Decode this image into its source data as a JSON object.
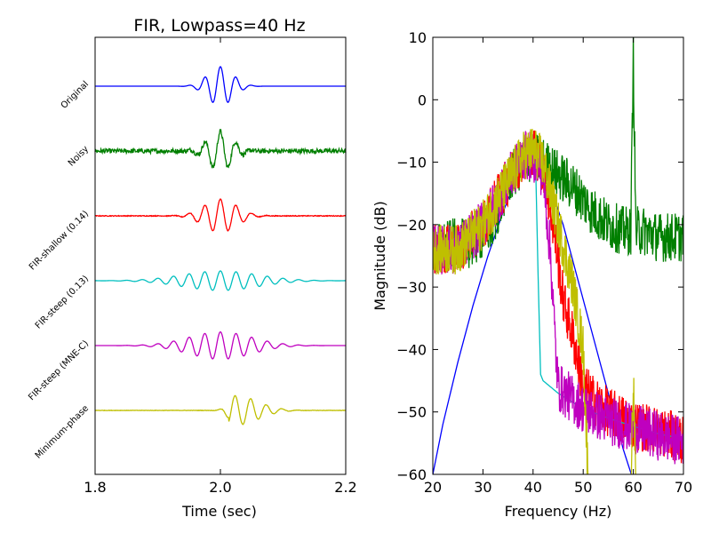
{
  "chart_data": [
    {
      "type": "line",
      "title": "FIR, Lowpass=40 Hz",
      "xlabel": "Time (sec)",
      "ylabel": "",
      "xlim": [
        1.8,
        2.2
      ],
      "xticks": [
        "1.8",
        "2.0",
        "2.2"
      ],
      "grid": false,
      "traces": [
        {
          "label": "Original",
          "color": "#0000ff",
          "peak_time": 2.0,
          "freq_hz": 40,
          "width_sec": 0.02,
          "noise": 0.0,
          "amplitude": 1.0,
          "phase": "zero"
        },
        {
          "label": "Noisy",
          "color": "#007f00",
          "peak_time": 2.0,
          "freq_hz": 40,
          "width_sec": 0.02,
          "noise": 0.12,
          "amplitude": 1.0,
          "phase": "zero"
        },
        {
          "label": "FIR-shallow (0.14)",
          "color": "#ff0000",
          "peak_time": 2.0,
          "freq_hz": 40,
          "width_sec": 0.026,
          "noise": 0.02,
          "amplitude": 0.85,
          "phase": "zero"
        },
        {
          "label": "FIR-steep (0.13)",
          "color": "#00bfbf",
          "peak_time": 2.0,
          "freq_hz": 40,
          "width_sec": 0.06,
          "noise": 0.0,
          "amplitude": 0.5,
          "phase": "zero"
        },
        {
          "label": "FIR-steep (MNE-C)",
          "color": "#bf00bf",
          "peak_time": 2.0,
          "freq_hz": 40,
          "width_sec": 0.05,
          "noise": 0.0,
          "amplitude": 0.7,
          "phase": "zero"
        },
        {
          "label": "Minimum-phase",
          "color": "#bfbf00",
          "peak_time": 2.025,
          "freq_hz": 40,
          "width_sec": 0.035,
          "noise": 0.01,
          "amplitude": 0.75,
          "phase": "minimum"
        }
      ]
    },
    {
      "type": "line",
      "title": "",
      "xlabel": "Frequency (Hz)",
      "ylabel": "Magnitude (dB)",
      "xlim": [
        20,
        70
      ],
      "ylim": [
        -60,
        10
      ],
      "xticks": [
        20,
        30,
        40,
        50,
        60,
        70
      ],
      "yticks": [
        10,
        0,
        -10,
        -20,
        -30,
        -40,
        -50,
        -60
      ],
      "grid": false,
      "series": [
        {
          "color": "#0000ff",
          "x": [
            20,
            22,
            25,
            28,
            31,
            34,
            37,
            40,
            43,
            46,
            49,
            52,
            55,
            58,
            60
          ],
          "y": [
            -60,
            -52,
            -42,
            -33,
            -25,
            -18,
            -12,
            -10,
            -13,
            -20,
            -29,
            -38,
            -47,
            -56,
            -61
          ]
        },
        {
          "color": "#007f00",
          "noisy": true,
          "x": [
            20,
            24,
            28,
            32,
            35,
            38,
            40,
            42,
            45,
            48,
            50,
            52,
            55,
            58,
            59.5,
            60,
            60.5,
            62,
            65,
            68,
            70
          ],
          "y": [
            -24,
            -23,
            -23,
            -20,
            -13,
            -10,
            -9,
            -10,
            -12,
            -14,
            -16,
            -18,
            -20,
            -21,
            -21,
            7.5,
            -21,
            -21,
            -22,
            -22,
            -22
          ]
        },
        {
          "color": "#ff0000",
          "noisy": true,
          "x": [
            20,
            25,
            30,
            35,
            38,
            40,
            42,
            44,
            46,
            48,
            50,
            52,
            55,
            60,
            65,
            70
          ],
          "y": [
            -24,
            -24,
            -20,
            -13,
            -9,
            -8,
            -11,
            -20,
            -32,
            -38,
            -46,
            -48,
            -50,
            -52,
            -53,
            -54.5
          ]
        },
        {
          "color": "#00bfbf",
          "x": [
            20,
            30,
            35,
            38,
            39.5,
            40.5,
            41,
            41.5,
            42,
            45,
            50,
            55,
            60,
            65,
            70
          ],
          "y": [
            -24,
            -20,
            -14,
            -10,
            -9,
            -10,
            -28,
            -44,
            -45,
            -47,
            -49.5,
            -51,
            -52.3,
            -53.5,
            -54.3
          ]
        },
        {
          "color": "#bf00bf",
          "noisy": true,
          "x": [
            20,
            25,
            30,
            35,
            38,
            40,
            42,
            43.5,
            44.5,
            45,
            50,
            55,
            60,
            65,
            70
          ],
          "y": [
            -24,
            -24,
            -20,
            -13,
            -9,
            -9,
            -12,
            -25,
            -40,
            -46,
            -49.5,
            -51.3,
            -52.7,
            -53.8,
            -54.7
          ]
        },
        {
          "color": "#bfbf00",
          "noisy": true,
          "x": [
            20,
            25,
            30,
            35,
            38,
            40,
            42,
            45,
            48,
            50,
            51,
            52,
            55,
            58,
            59.5,
            60,
            60.5
          ],
          "y": [
            -24,
            -24,
            -20,
            -13,
            -9,
            -8,
            -10,
            -20,
            -30,
            -40,
            -61,
            -61,
            -61,
            -61,
            -61,
            -45,
            -61
          ]
        }
      ]
    }
  ]
}
